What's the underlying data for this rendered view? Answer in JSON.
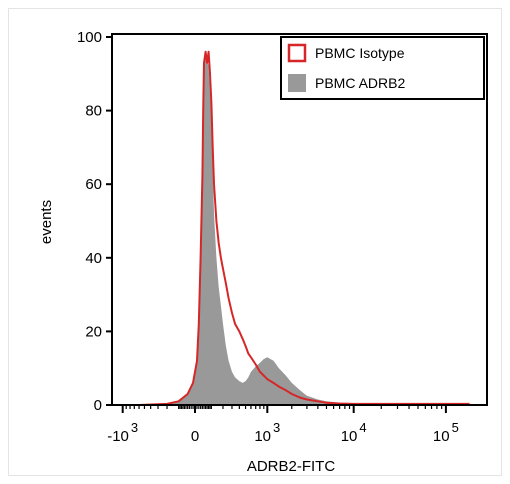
{
  "chart_data": {
    "type": "area",
    "title": "",
    "xlabel": "ADRB2-FITC",
    "ylabel": "events",
    "x_scale": "biexponential",
    "xlim": [
      -1800,
      180000
    ],
    "ylim": [
      0,
      100
    ],
    "y_ticks": [
      0,
      20,
      40,
      60,
      80,
      100
    ],
    "y_tick_labels": [
      "0",
      "20",
      "40",
      "60",
      "80",
      "100"
    ],
    "x_ticks": [
      {
        "base": "-10",
        "exp": "3",
        "value": -1000
      },
      {
        "base": "0",
        "exp": "",
        "value": 0
      },
      {
        "base": "10",
        "exp": "3",
        "value": 1000
      },
      {
        "base": "10",
        "exp": "4",
        "value": 10000
      },
      {
        "base": "10",
        "exp": "5",
        "value": 100000
      }
    ],
    "legend_position": "top-right",
    "series": [
      {
        "name": "PBMC Isotype",
        "style": "outline",
        "color": "#d62728",
        "x": [
          -1000,
          -600,
          -200,
          -100,
          -40,
          -10,
          10,
          20,
          30,
          40,
          45,
          50,
          60,
          70,
          80,
          90,
          100,
          110,
          120,
          140,
          160,
          180,
          200,
          230,
          260,
          300,
          340,
          400,
          450,
          500,
          550,
          600,
          700,
          800,
          900,
          1000,
          1200,
          1400,
          1700,
          2000,
          2500,
          3000,
          4000,
          5000,
          7000,
          10000,
          20000,
          50000,
          100000,
          180000
        ],
        "y": [
          0,
          0,
          0.3,
          1,
          3,
          6,
          12,
          22,
          40,
          62,
          80,
          93,
          96,
          93,
          96,
          90,
          82,
          70,
          60,
          50,
          44,
          40,
          37,
          33,
          29,
          25,
          22,
          20,
          18,
          16,
          14,
          13,
          11,
          9,
          8,
          7,
          6,
          5,
          4,
          3,
          2,
          1.5,
          1,
          0.6,
          0.4,
          0.3,
          0.3,
          0.3,
          0.3,
          0.3
        ]
      },
      {
        "name": "PBMC ADRB2",
        "style": "filled",
        "color": "#999999",
        "x": [
          -1000,
          -600,
          -200,
          -100,
          -40,
          -10,
          10,
          20,
          30,
          40,
          45,
          50,
          60,
          70,
          80,
          90,
          100,
          110,
          120,
          140,
          160,
          180,
          200,
          230,
          260,
          300,
          340,
          400,
          450,
          500,
          550,
          600,
          700,
          800,
          900,
          1000,
          1200,
          1400,
          1700,
          2000,
          2500,
          3000,
          4000,
          5000,
          7000,
          10000,
          20000,
          50000,
          100000,
          180000
        ],
        "y": [
          0,
          0,
          0.3,
          1,
          3,
          6,
          12,
          25,
          45,
          65,
          80,
          90,
          96,
          94,
          92,
          85,
          78,
          65,
          52,
          40,
          32,
          27,
          22,
          16,
          12,
          9,
          7.5,
          6.5,
          6,
          6.5,
          7.5,
          9,
          10.5,
          11.5,
          12.5,
          13,
          12,
          10,
          8,
          6,
          4,
          2.5,
          1.5,
          1,
          0.6,
          0.4,
          0.3,
          0.3,
          0.3,
          0.3
        ]
      }
    ]
  }
}
